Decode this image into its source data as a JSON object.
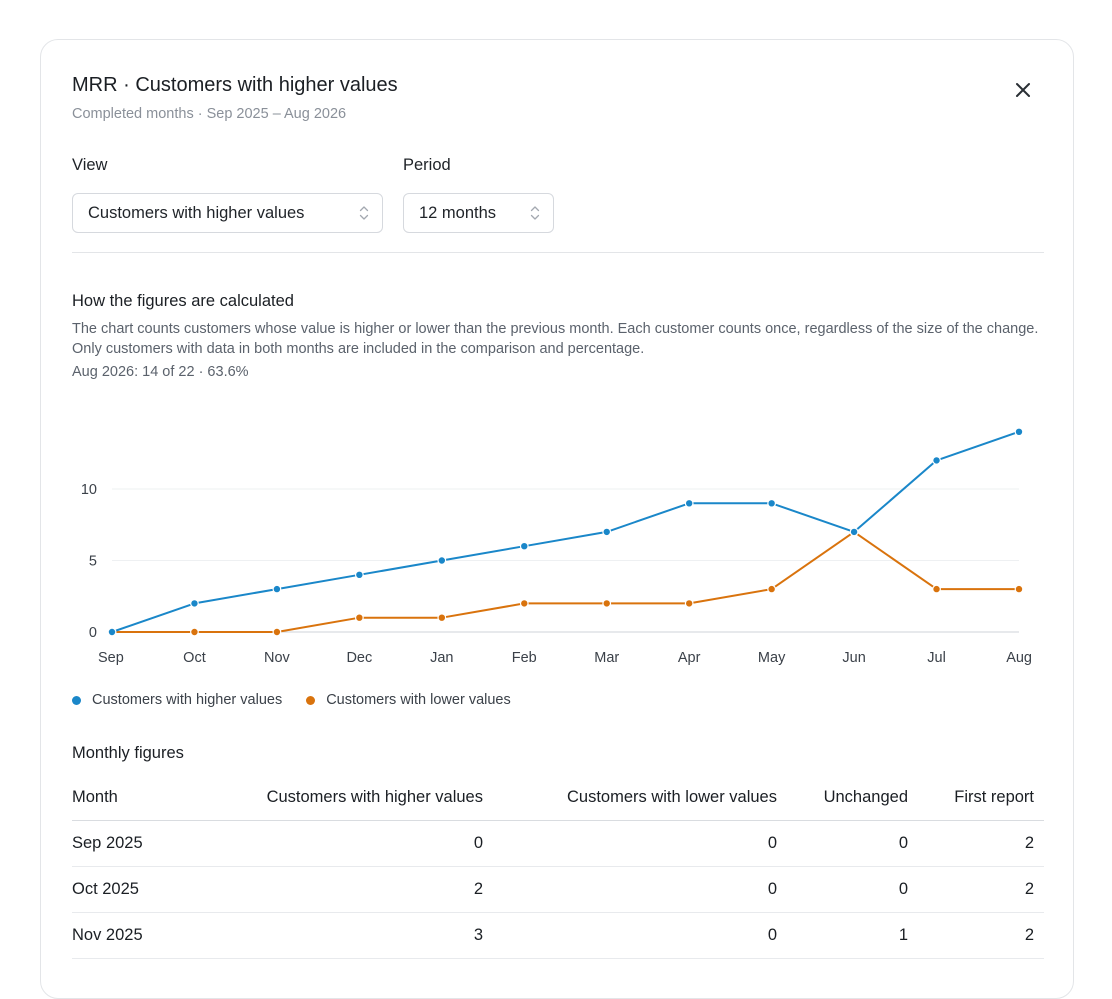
{
  "dialog": {
    "title": "MRR · Customers with higher values",
    "subtitle": "Completed months · Sep 2025 – Aug 2026",
    "close_icon": "close-icon"
  },
  "filters": {
    "view_label": "View",
    "view_value": "Customers with higher values",
    "period_label": "Period",
    "period_value": "12 months"
  },
  "explanation": {
    "heading": "How the figures are calculated",
    "text": "The chart counts customers whose value is higher or lower than the previous month. Each customer counts once, regardless of the size of the change. Only customers with data in both months are included in the comparison and percentage.",
    "summary": "Aug 2026: 14 of 22 · 63.6%"
  },
  "colors": {
    "higher": "#1a87c9",
    "lower": "#d9730d"
  },
  "chart_data": {
    "type": "line",
    "categories": [
      "Sep",
      "Oct",
      "Nov",
      "Dec",
      "Jan",
      "Feb",
      "Mar",
      "Apr",
      "May",
      "Jun",
      "Jul",
      "Aug"
    ],
    "series": [
      {
        "name": "Customers with higher values",
        "values": [
          0,
          2,
          3,
          4,
          5,
          6,
          7,
          9,
          9,
          7,
          12,
          14
        ]
      },
      {
        "name": "Customers with lower values",
        "values": [
          0,
          0,
          0,
          1,
          1,
          2,
          2,
          2,
          3,
          7,
          3,
          3
        ]
      }
    ],
    "yticks": [
      0,
      5,
      10
    ],
    "ylim": [
      0,
      14
    ],
    "grid": true,
    "legend": "bottom-left"
  },
  "table": {
    "heading": "Monthly figures",
    "columns": [
      "Month",
      "Customers with higher values",
      "Customers with lower values",
      "Unchanged",
      "First report"
    ],
    "rows": [
      [
        "Sep 2025",
        "0",
        "0",
        "0",
        "2"
      ],
      [
        "Oct 2025",
        "2",
        "0",
        "0",
        "2"
      ],
      [
        "Nov 2025",
        "3",
        "0",
        "1",
        "2"
      ]
    ]
  }
}
